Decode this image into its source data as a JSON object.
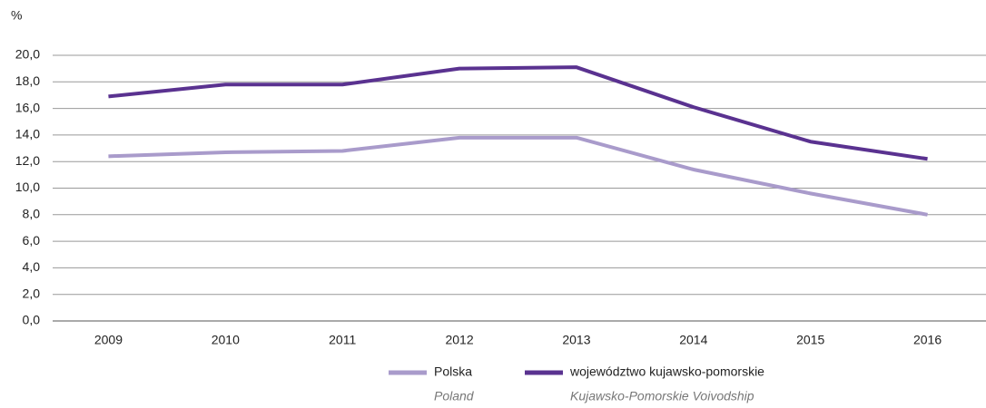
{
  "chart_data": {
    "type": "line",
    "y_unit": "%",
    "categories": [
      "2009",
      "2010",
      "2011",
      "2012",
      "2013",
      "2014",
      "2015",
      "2016"
    ],
    "series": [
      {
        "name": "Polska",
        "name_translation": "Poland",
        "color": "#a99bcb",
        "values": [
          12.4,
          12.7,
          12.8,
          13.8,
          13.8,
          11.4,
          9.6,
          8.0
        ]
      },
      {
        "name": "województwo kujawsko-pomorskie",
        "name_translation": "Kujawsko-Pomorskie Voivodship",
        "color": "#5a3290",
        "values": [
          16.9,
          17.8,
          17.8,
          19.0,
          19.1,
          16.1,
          13.5,
          12.2
        ]
      }
    ],
    "ylim": [
      0,
      20
    ],
    "yticks": [
      {
        "value": 0,
        "label": "0,0"
      },
      {
        "value": 2,
        "label": "2,0"
      },
      {
        "value": 4,
        "label": "4,0"
      },
      {
        "value": 6,
        "label": "6,0"
      },
      {
        "value": 8,
        "label": "8,0"
      },
      {
        "value": 10,
        "label": "10,0"
      },
      {
        "value": 12,
        "label": "12,0"
      },
      {
        "value": 14,
        "label": "14,0"
      },
      {
        "value": 16,
        "label": "16,0"
      },
      {
        "value": 18,
        "label": "18,0"
      },
      {
        "value": 20,
        "label": "20,0"
      }
    ],
    "grid": true,
    "legend": "bottom"
  }
}
